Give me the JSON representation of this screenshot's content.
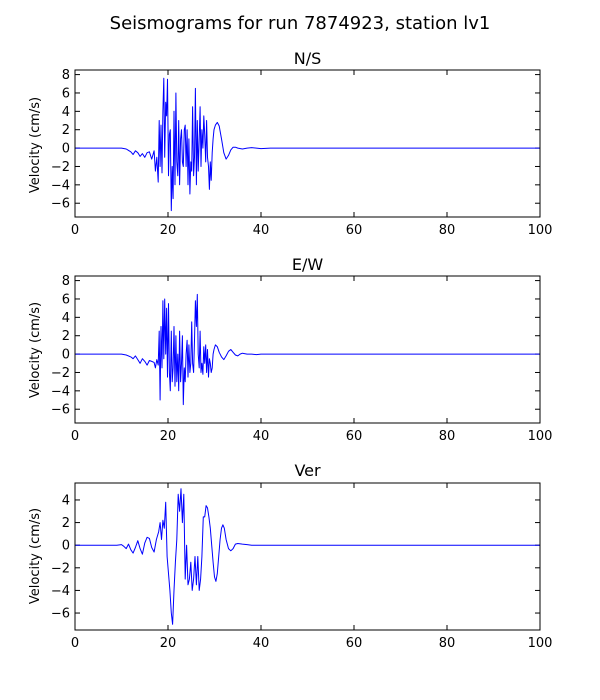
{
  "suptitle": "Seismograms for run 7874923, station lv1",
  "chart_data": [
    {
      "type": "line",
      "title": "N/S",
      "xlabel": "",
      "ylabel": "Velocity (cm/s)",
      "xlim": [
        0,
        100
      ],
      "ylim": [
        -7.5,
        8.5
      ],
      "xticks": [
        0,
        20,
        40,
        60,
        80,
        100
      ],
      "yticks": [
        -6,
        -4,
        -2,
        0,
        2,
        4,
        6,
        8
      ],
      "grid": false,
      "color": "#0000ff",
      "x": [
        0,
        10,
        11,
        12,
        12.5,
        13,
        13.5,
        14,
        14.5,
        15,
        15.5,
        16,
        16.5,
        17,
        17.3,
        17.6,
        17.9,
        18.1,
        18.3,
        18.5,
        18.7,
        18.9,
        19.1,
        19.3,
        19.5,
        19.7,
        19.9,
        20.1,
        20.3,
        20.5,
        20.7,
        20.9,
        21.1,
        21.3,
        21.5,
        21.7,
        21.9,
        22.1,
        22.3,
        22.5,
        22.7,
        22.9,
        23.1,
        23.3,
        23.5,
        23.7,
        23.9,
        24.1,
        24.3,
        24.5,
        24.7,
        24.9,
        25.1,
        25.3,
        25.5,
        25.7,
        25.9,
        26.1,
        26.3,
        26.5,
        26.7,
        26.9,
        27.1,
        27.3,
        27.5,
        27.7,
        27.9,
        28.1,
        28.3,
        28.5,
        28.7,
        28.9,
        29.1,
        29.3,
        29.5,
        29.7,
        29.9,
        30.2,
        30.6,
        31,
        31.5,
        32,
        32.5,
        33,
        33.5,
        34,
        34.5,
        35,
        36,
        37,
        38,
        39,
        40,
        42,
        45,
        50,
        100
      ],
      "y": [
        0,
        0,
        -0.1,
        -0.4,
        -0.7,
        -0.3,
        -0.5,
        -0.9,
        -0.6,
        -1,
        -0.5,
        -0.4,
        -1.2,
        -0.3,
        -2.5,
        -1,
        -3.7,
        3,
        -2,
        2.5,
        -2.7,
        4,
        7.6,
        -1,
        5,
        3.5,
        7.5,
        -3,
        1.5,
        2,
        -6.8,
        -2,
        -5.5,
        4,
        -4,
        6,
        -1.5,
        -3,
        3,
        -4,
        1,
        2,
        -1.5,
        -2,
        2,
        2.5,
        -2,
        2,
        -4,
        1,
        -5,
        -1.5,
        -2.5,
        4.5,
        -3,
        -1,
        6.5,
        -4,
        3,
        -2.5,
        1,
        4.5,
        -2,
        2,
        0,
        3.5,
        1.5,
        -1.5,
        3,
        -1,
        -2,
        -4.5,
        -1.5,
        -3.5,
        -0.5,
        1,
        2,
        2.5,
        2.8,
        2.4,
        1,
        -0.5,
        -1.2,
        -0.8,
        -0.2,
        0.1,
        0.1,
        0,
        -0.1,
        0,
        0.05,
        0,
        -0.05,
        0,
        0,
        0,
        0
      ]
    },
    {
      "type": "line",
      "title": "E/W",
      "xlabel": "",
      "ylabel": "Velocity (cm/s)",
      "xlim": [
        0,
        100
      ],
      "ylim": [
        -7.5,
        8.5
      ],
      "xticks": [
        0,
        20,
        40,
        60,
        80,
        100
      ],
      "yticks": [
        -6,
        -4,
        -2,
        0,
        2,
        4,
        6,
        8
      ],
      "grid": false,
      "color": "#0000ff",
      "x": [
        0,
        10,
        11,
        12,
        12.5,
        13,
        13.5,
        14,
        14.5,
        15,
        15.5,
        16,
        16.5,
        17,
        17.3,
        17.6,
        17.9,
        18.1,
        18.3,
        18.5,
        18.7,
        18.9,
        19.1,
        19.3,
        19.5,
        19.7,
        19.9,
        20.1,
        20.3,
        20.5,
        20.7,
        20.9,
        21.1,
        21.3,
        21.5,
        21.7,
        21.9,
        22.1,
        22.3,
        22.5,
        22.7,
        22.9,
        23.1,
        23.3,
        23.5,
        23.7,
        23.9,
        24.1,
        24.3,
        24.5,
        24.7,
        24.9,
        25.1,
        25.3,
        25.5,
        25.7,
        25.9,
        26.1,
        26.3,
        26.5,
        26.7,
        26.9,
        27.1,
        27.3,
        27.5,
        27.7,
        27.9,
        28.1,
        28.3,
        28.5,
        28.7,
        28.9,
        29.1,
        29.3,
        29.5,
        29.7,
        29.9,
        30.2,
        30.6,
        31,
        31.5,
        32,
        32.5,
        33,
        33.5,
        34,
        34.5,
        35,
        35.5,
        36,
        37,
        38,
        39,
        40,
        42,
        45,
        50,
        100
      ],
      "y": [
        0,
        0,
        -0.1,
        -0.3,
        -0.5,
        -0.2,
        -0.6,
        -1,
        -0.5,
        -0.8,
        -1.2,
        -0.7,
        -0.8,
        -0.9,
        -1.5,
        -0.6,
        -1.2,
        2.5,
        -5,
        3,
        -1.5,
        5.8,
        -0.5,
        6,
        0,
        5,
        -2.5,
        5.5,
        -2,
        -4,
        2.5,
        -3,
        -1.5,
        3,
        -3.5,
        2,
        -3,
        0,
        -4,
        2.5,
        -3,
        -1,
        2,
        -5.5,
        -1.5,
        -3,
        0,
        1.5,
        -2.5,
        1,
        -2,
        -1,
        3.5,
        -1,
        -2,
        1.5,
        5.8,
        3,
        6.5,
        0,
        -1.5,
        2.5,
        -2,
        -1,
        -2.2,
        0.8,
        -1,
        1,
        -2,
        0.5,
        -2.5,
        -0.5,
        -1,
        -2,
        -1.5,
        0,
        0.5,
        1,
        0.8,
        0.2,
        -0.3,
        -0.6,
        -0.2,
        0.3,
        0.5,
        0.2,
        -0.1,
        -0.2,
        0,
        0.1,
        0,
        0,
        -0.05,
        0,
        0,
        0,
        0,
        0
      ]
    },
    {
      "type": "line",
      "title": "Ver",
      "xlabel": "",
      "ylabel": "Velocity (cm/s)",
      "xlim": [
        0,
        100
      ],
      "ylim": [
        -7.5,
        5.5
      ],
      "xticks": [
        0,
        20,
        40,
        60,
        80,
        100
      ],
      "yticks": [
        -6,
        -4,
        -2,
        0,
        2,
        4
      ],
      "grid": false,
      "color": "#0000ff",
      "x": [
        0,
        9,
        10,
        10.5,
        11,
        11.5,
        12,
        12.5,
        13,
        13.5,
        14,
        14.5,
        15,
        15.5,
        16,
        16.5,
        17,
        17.5,
        18,
        18.3,
        18.6,
        18.9,
        19.2,
        19.5,
        19.8,
        20.1,
        20.4,
        20.7,
        21,
        21.3,
        21.6,
        21.9,
        22.2,
        22.5,
        22.8,
        23.1,
        23.4,
        23.7,
        24,
        24.3,
        24.6,
        24.9,
        25.2,
        25.5,
        25.8,
        26.1,
        26.4,
        26.7,
        27,
        27.3,
        27.6,
        27.9,
        28.2,
        28.5,
        28.8,
        29.1,
        29.4,
        29.7,
        30,
        30.3,
        30.6,
        30.9,
        31.2,
        31.5,
        31.8,
        32.1,
        32.5,
        33,
        33.5,
        34,
        34.5,
        35,
        36,
        37,
        38,
        40,
        42,
        45,
        50,
        100
      ],
      "y": [
        0,
        0,
        0.05,
        -0.1,
        -0.3,
        0.1,
        -0.4,
        -0.7,
        -0.2,
        0.4,
        -0.3,
        -0.8,
        0.2,
        0.7,
        0.6,
        -0.2,
        -0.6,
        0.5,
        1.2,
        2,
        0.5,
        2.2,
        1.5,
        3.8,
        -1,
        -2.5,
        -4,
        -6,
        -7,
        -4,
        -1.5,
        0.5,
        4.5,
        3,
        5,
        2,
        4.5,
        -3,
        0,
        -3.5,
        -3,
        -1.5,
        -4,
        -3,
        -1,
        -3.5,
        -1,
        -4,
        -3,
        -1,
        2.5,
        2.5,
        3.5,
        3.3,
        2.5,
        1.5,
        0,
        -1.5,
        -2.8,
        -3.2,
        -2.5,
        -1,
        0.5,
        1.5,
        1.8,
        1.5,
        0.5,
        -0.3,
        -0.5,
        -0.3,
        0.1,
        0.15,
        0.1,
        0.05,
        0,
        0,
        0,
        0,
        0,
        0
      ]
    }
  ]
}
